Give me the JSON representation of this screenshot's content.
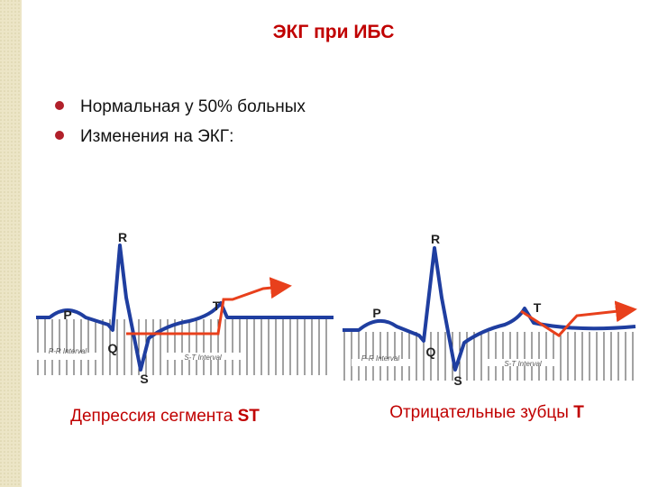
{
  "title": "ЭКГ при ИБС",
  "bullets": [
    "Нормальная у 50% больных",
    "Изменения на ЭКГ:"
  ],
  "figures": [
    {
      "labels": {
        "R": "R",
        "P": "P",
        "T": "T",
        "Q": "Q",
        "S": "S",
        "pr": "P-R Interval",
        "st": "S-T Interval"
      },
      "caption": {
        "text": "Депрессия сегмента ",
        "bold": "ST"
      }
    },
    {
      "labels": {
        "R": "R",
        "P": "P",
        "T": "T",
        "Q": "Q",
        "S": "S",
        "pr": "P-R Interval",
        "st": "S-T Interval"
      },
      "caption": {
        "text": "Отрицательные зубцы ",
        "bold": "T"
      }
    }
  ]
}
